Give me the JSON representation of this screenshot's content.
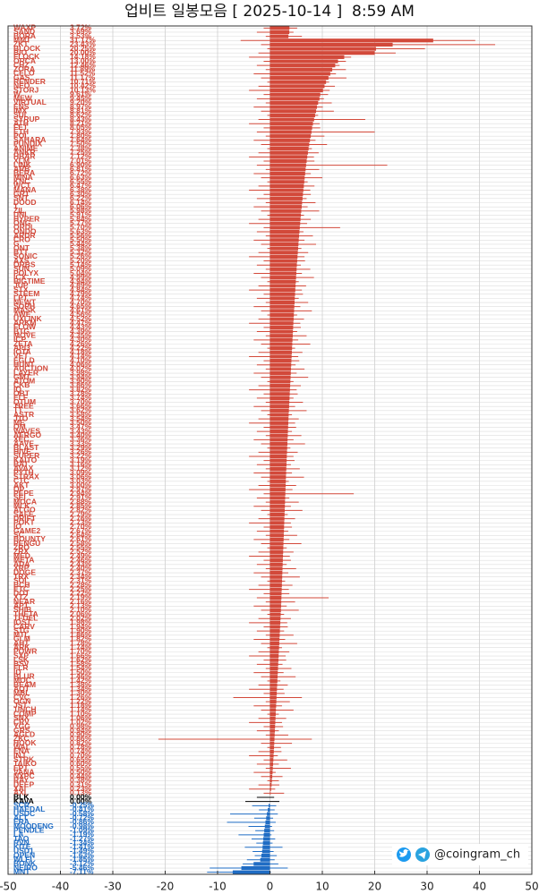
{
  "chart_data": {
    "type": "range-bar",
    "title": "업비트 일봉모음 [ 2025-10-14 ]  8:59 AM",
    "watermark": "@coingram_ch",
    "categories": [
      "WAXP",
      "SAND",
      "BORA",
      "MMT",
      "ZKT",
      "BLOCK",
      "BIO",
      "FLOCK",
      "ORCA",
      "CHZ",
      "ZORA",
      "CELO",
      "GAS",
      "RENDER",
      "NEO",
      "STORJ",
      "W",
      "MEW",
      "VIRTUAL",
      "ENS",
      "IMX",
      "SUI",
      "SYRUP",
      "ATH",
      "FET",
      "ETH",
      "POL",
      "SAHARA",
      "PUNDIX",
      "ANIME",
      "ANKR",
      "HBAR",
      "XLM",
      "LINK",
      "ARB",
      "BERA",
      "MINA",
      "KNC",
      "WCT",
      "MANA",
      "GRT",
      "SNT",
      "DOOD",
      "T",
      "ZIL",
      "UNI",
      "HYPER",
      "ONG",
      "ORDI",
      "ONDO",
      "ARDR",
      "CRO",
      "G",
      "ONT",
      "BTT",
      "SONIC",
      "AXS",
      "ORBS",
      "SUN",
      "POLYX",
      "ICX",
      "BIGTIME",
      "JUP",
      "STX",
      "STEEM",
      "LPT",
      "NEWT",
      "SOPH",
      "MASK",
      "AWE",
      "UXLINK",
      "ARKM",
      "FLOW",
      "BTG",
      "MOVE",
      "ICP",
      "ZETA",
      "API3",
      "IOTA",
      "VET",
      "EGLD",
      "HUNT",
      "AUCTION",
      "LAYER",
      "GMT",
      "ATOM",
      "CKB",
      "IQ",
      "OBT",
      "ELF",
      "QTUM",
      "TREE",
      "TT",
      "ASTR",
      "JTO",
      "ME",
      "OM",
      "WAVES",
      "AERGO",
      "XEC",
      "AAVE",
      "BLAST",
      "HIVE",
      "SUPER",
      "KAITO",
      "BAT",
      "AVAX",
      "PYTH",
      "STRAX",
      "CTC",
      "AKT",
      "OP",
      "PEPE",
      "SEI",
      "MOCA",
      "MLK",
      "ALGO",
      "SAFE",
      "DRIFT",
      "POKT",
      "IO",
      "GAME2",
      "SC",
      "BOUNTY",
      "PENGU",
      "ZRO",
      "ZRX",
      "MED",
      "META",
      "ADA",
      "XRP",
      "DOGE",
      "TRX",
      "SOL",
      "BCH",
      "ETC",
      "DOT",
      "XTZ",
      "NEAR",
      "APT",
      "SHIB",
      "THETA",
      "TFUEL",
      "IOST",
      "CARV",
      "STG",
      "MTL",
      "GLM",
      "AHT",
      "ARK",
      "POWR",
      "SXP",
      "LSK",
      "BSV",
      "FLR",
      "ID",
      "BLUR",
      "MOC",
      "BEAM",
      "AQT",
      "MBL",
      "CVC",
      "OGN",
      "JST",
      "1INCH",
      "COMP",
      "SNX",
      "CRV",
      "YGG",
      "GRS",
      "AGLD",
      "ZKC",
      "HOOK",
      "WAL",
      "ENA",
      "INJ",
      "STRK",
      "TAIKO",
      "EPT",
      "VANA",
      "NXPC",
      "RAY",
      "DEEP",
      "XAI",
      "AXL",
      "BLK",
      "KAVA",
      "SCR",
      "HAEDAL",
      "USDC",
      "ALT",
      "ERA",
      "MOODENG",
      "PENDLE",
      "LA",
      "TAO",
      "RVN",
      "KITE",
      "USD1",
      "OPEN",
      "WLFI",
      "BONK",
      "NEIRO",
      "MNT"
    ],
    "values": [
      3.72,
      3.69,
      3.53,
      31.17,
      23.43,
      20.25,
      20,
      14.18,
      13,
      12.46,
      11.89,
      11.52,
      11.17,
      10.71,
      10.42,
      10.13,
      9.61,
      9.45,
      9.2,
      8.97,
      8.81,
      8.62,
      8.43,
      8.21,
      8.05,
      7.93,
      7.8,
      7.64,
      7.5,
      7.38,
      7.25,
      7.12,
      7.01,
      6.9,
      6.81,
      6.72,
      6.63,
      6.55,
      6.47,
      6.38,
      6.3,
      6.22,
      6.14,
      6.06,
      5.98,
      5.91,
      5.84,
      5.77,
      5.7,
      5.63,
      5.56,
      5.5,
      5.44,
      5.38,
      5.32,
      5.26,
      5.2,
      5.14,
      5.09,
      5.04,
      4.99,
      4.94,
      4.89,
      4.84,
      4.79,
      4.74,
      4.7,
      4.65,
      4.61,
      4.56,
      4.52,
      4.47,
      4.43,
      4.39,
      4.35,
      4.3,
      4.26,
      4.22,
      4.18,
      4.14,
      4.1,
      4.06,
      4.02,
      3.98,
      3.94,
      3.9,
      3.86,
      3.82,
      3.78,
      3.74,
      3.7,
      3.66,
      3.62,
      3.58,
      3.54,
      3.5,
      3.47,
      3.43,
      3.4,
      3.36,
      3.33,
      3.29,
      3.26,
      3.22,
      3.19,
      3.16,
      3.12,
      3.09,
      3.06,
      3.03,
      3,
      2.97,
      2.94,
      2.91,
      2.88,
      2.85,
      2.82,
      2.79,
      2.76,
      2.73,
      2.7,
      2.67,
      2.64,
      2.61,
      2.58,
      2.55,
      2.52,
      2.49,
      2.46,
      2.43,
      2.4,
      2.37,
      2.34,
      2.31,
      2.28,
      2.25,
      2.22,
      2.19,
      2.16,
      2.13,
      2.1,
      2.06,
      2.02,
      1.98,
      1.94,
      1.9,
      1.86,
      1.82,
      1.78,
      1.74,
      1.7,
      1.66,
      1.62,
      1.58,
      1.54,
      1.5,
      1.46,
      1.42,
      1.38,
      1.34,
      1.3,
      1.26,
      1.22,
      1.18,
      1.14,
      1.1,
      1.06,
      1.02,
      0.98,
      0.94,
      0.9,
      0.86,
      0.82,
      0.78,
      0.74,
      0.7,
      0.65,
      0.6,
      0.55,
      0.5,
      0.44,
      0.38,
      0.31,
      0.23,
      0.13,
      0,
      0,
      -0.25,
      -0.41,
      -0.58,
      -0.72,
      -0.86,
      -0.98,
      -1.09,
      -1.19,
      -1.27,
      -1.34,
      -1.41,
      -1.49,
      -1.63,
      -1.85,
      -3.12,
      -5.46,
      -7.11
    ],
    "value_labels": [
      "3.72%",
      "3.69%",
      "3.53%",
      "31.17%",
      "23.43%",
      "20.25%",
      "20.00%",
      "14.18%",
      "13.00%",
      "12.46%",
      "11.89%",
      "11.52%",
      "11.17%",
      "10.71%",
      "10.42%",
      "10.13%",
      "9.61%",
      "9.45%",
      "9.20%",
      "8.97%",
      "8.81%",
      "8.62%",
      "8.43%",
      "8.21%",
      "8.05%",
      "7.93%",
      "7.80%",
      "7.64%",
      "7.50%",
      "7.38%",
      "7.25%",
      "7.12%",
      "7.01%",
      "6.90%",
      "6.81%",
      "6.72%",
      "6.63%",
      "6.55%",
      "6.47%",
      "6.38%",
      "6.30%",
      "6.22%",
      "6.14%",
      "6.06%",
      "5.98%",
      "5.91%",
      "5.84%",
      "5.77%",
      "5.70%",
      "5.63%",
      "5.56%",
      "5.50%",
      "5.44%",
      "5.38%",
      "5.32%",
      "5.26%",
      "5.20%",
      "5.14%",
      "5.09%",
      "5.04%",
      "4.99%",
      "4.94%",
      "4.89%",
      "4.84%",
      "4.79%",
      "4.74%",
      "4.70%",
      "4.65%",
      "4.61%",
      "4.56%",
      "4.52%",
      "4.47%",
      "4.43%",
      "4.39%",
      "4.35%",
      "4.30%",
      "4.26%",
      "4.22%",
      "4.18%",
      "4.14%",
      "4.10%",
      "4.06%",
      "4.02%",
      "3.98%",
      "3.94%",
      "3.90%",
      "3.86%",
      "3.82%",
      "3.78%",
      "3.74%",
      "3.70%",
      "3.66%",
      "3.62%",
      "3.58%",
      "3.54%",
      "3.50%",
      "3.47%",
      "3.43%",
      "3.40%",
      "3.36%",
      "3.33%",
      "3.29%",
      "3.26%",
      "3.22%",
      "3.19%",
      "3.16%",
      "3.12%",
      "3.09%",
      "3.06%",
      "3.03%",
      "3.00%",
      "2.97%",
      "2.94%",
      "2.91%",
      "2.88%",
      "2.85%",
      "2.82%",
      "2.79%",
      "2.76%",
      "2.73%",
      "2.70%",
      "2.67%",
      "2.64%",
      "2.61%",
      "2.58%",
      "2.55%",
      "2.52%",
      "2.49%",
      "2.46%",
      "2.43%",
      "2.40%",
      "2.37%",
      "2.34%",
      "2.31%",
      "2.28%",
      "2.25%",
      "2.22%",
      "2.19%",
      "2.16%",
      "2.13%",
      "2.10%",
      "2.06%",
      "2.02%",
      "1.98%",
      "1.94%",
      "1.90%",
      "1.86%",
      "1.82%",
      "1.78%",
      "1.74%",
      "1.70%",
      "1.66%",
      "1.62%",
      "1.58%",
      "1.54%",
      "1.50%",
      "1.46%",
      "1.42%",
      "1.38%",
      "1.34%",
      "1.30%",
      "1.26%",
      "1.22%",
      "1.18%",
      "1.14%",
      "1.10%",
      "1.06%",
      "1.02%",
      "0.98%",
      "0.94%",
      "0.90%",
      "0.86%",
      "0.82%",
      "0.78%",
      "0.74%",
      "0.70%",
      "0.65%",
      "0.60%",
      "0.55%",
      "0.50%",
      "0.44%",
      "0.38%",
      "0.31%",
      "0.23%",
      "0.13%",
      "0.00%",
      "0.00%",
      "-0.25%",
      "-0.41%",
      "-0.58%",
      "-0.72%",
      "-0.86%",
      "-0.98%",
      "-1.09%",
      "-1.19%",
      "-1.27%",
      "-1.34%",
      "-1.41%",
      "-1.49%",
      "-1.63%",
      "-1.85%",
      "-3.12%",
      "-5.46%",
      "-7.11%"
    ],
    "low": [
      -1.2,
      -2.5,
      -0.8,
      -5.6,
      -1.7,
      -0.5,
      -2.2,
      -4.0,
      -1.2,
      -2.5,
      -0.8,
      -3.1,
      -1.7,
      -0.5,
      -2.2,
      -4.0,
      -1.2,
      -2.5,
      -0.8,
      -3.1,
      -1.7,
      -0.5,
      -2.2,
      -4.0,
      -1.2,
      -2.5,
      -0.8,
      -3.1,
      -1.7,
      -0.5,
      -2.2,
      -4.0,
      -1.2,
      -2.5,
      -0.8,
      -3.1,
      -1.7,
      -0.5,
      -2.2,
      -4.0,
      -1.2,
      -2.5,
      -0.8,
      -3.1,
      -1.7,
      -0.5,
      -2.2,
      -4.0,
      -1.2,
      -2.5,
      -0.8,
      -3.1,
      -1.7,
      -0.5,
      -2.2,
      -4.0,
      -1.2,
      -2.5,
      -0.8,
      -3.1,
      -1.7,
      -0.5,
      -2.2,
      -4.0,
      -1.2,
      -2.5,
      -0.8,
      -3.1,
      -1.7,
      -0.5,
      -2.2,
      -4.0,
      -1.2,
      -2.5,
      -0.8,
      -3.1,
      -1.7,
      -0.5,
      -2.2,
      -4.0,
      -1.2,
      -2.5,
      -0.8,
      -3.1,
      -1.7,
      -0.5,
      -2.2,
      -4.0,
      -1.2,
      -2.5,
      -0.8,
      -3.1,
      -1.7,
      -0.5,
      -2.2,
      -4.0,
      -1.2,
      -2.5,
      -0.8,
      -3.1,
      -1.7,
      -0.5,
      -2.2,
      -4.0,
      -1.2,
      -2.5,
      -0.8,
      -3.1,
      -1.7,
      -0.5,
      -2.2,
      -4.0,
      -1.2,
      -2.5,
      -0.8,
      -3.1,
      -1.7,
      -0.5,
      -2.2,
      -4.0,
      -1.2,
      -2.5,
      -0.8,
      -3.1,
      -1.7,
      -0.5,
      -2.2,
      -4.0,
      -1.2,
      -2.5,
      -0.8,
      -3.1,
      -1.7,
      -0.5,
      -2.2,
      -4.0,
      -1.2,
      -2.5,
      -0.8,
      -3.1,
      -1.7,
      -0.5,
      -2.2,
      -4.0,
      -1.2,
      -2.5,
      -0.8,
      -3.1,
      -1.7,
      -0.5,
      -2.2,
      -4.0,
      -1.2,
      -2.5,
      -0.8,
      -3.1,
      -1.7,
      -0.5,
      -2.2,
      -4.0,
      -1.2,
      -7.0,
      -0.8,
      -3.1,
      -1.7,
      -0.5,
      -2.2,
      -4.0,
      -1.2,
      -2.5,
      -0.8,
      -21.3,
      -1.7,
      -0.5,
      -2.2,
      -4.0,
      -1.2,
      -2.5,
      -0.8,
      -3.1,
      -1.7,
      -0.5,
      -2.2,
      -4.0,
      -1.2,
      -2.5,
      -4.7,
      -3.4,
      -2.1,
      -7.6,
      -3.0,
      -8.2,
      -4.1,
      -2.8,
      -6.0,
      -3.5,
      -2.6,
      -4.8,
      -3.3,
      -2.9,
      -4.4,
      -5.2,
      -11.5,
      -12.0
    ],
    "high": [
      5.2,
      4.5,
      6.1,
      39.2,
      43.0,
      29.6,
      24.0,
      15.5,
      14.5,
      13.3,
      14.5,
      12.6,
      14.6,
      11.3,
      12.4,
      11.4,
      11.1,
      10.3,
      11.8,
      10.1,
      12.2,
      9.2,
      18.2,
      9.5,
      9.6,
      20.0,
      10.4,
      8.7,
      10.9,
      8.0,
      9.3,
      8.4,
      8.5,
      22.4,
      9.4,
      7.8,
      10.0,
      7.2,
      8.5,
      7.7,
      7.8,
      7.0,
      8.7,
      7.2,
      9.4,
      6.5,
      7.8,
      7.1,
      13.4,
      6.4,
      8.2,
      6.6,
      8.8,
      6.0,
      7.3,
      6.6,
      6.7,
      5.9,
      7.7,
      6.1,
      8.4,
      5.5,
      6.9,
      6.1,
      6.3,
      5.5,
      7.3,
      5.8,
      8.0,
      5.2,
      6.5,
      5.8,
      5.9,
      5.2,
      7.0,
      5.4,
      7.7,
      4.8,
      6.2,
      5.4,
      5.6,
      4.9,
      6.6,
      5.1,
      7.3,
      4.5,
      5.9,
      5.1,
      5.3,
      4.5,
      6.3,
      4.8,
      7.0,
      4.2,
      5.5,
      4.8,
      5.0,
      4.2,
      6.0,
      4.5,
      6.7,
      3.9,
      5.3,
      4.5,
      4.7,
      4.0,
      5.7,
      4.2,
      6.5,
      3.6,
      5.0,
      4.3,
      16.0,
      3.7,
      5.5,
      4.0,
      6.2,
      3.4,
      4.8,
      4.0,
      4.2,
      3.5,
      5.2,
      3.7,
      6.0,
      3.2,
      4.5,
      3.8,
      4.0,
      3.2,
      5.0,
      3.5,
      5.7,
      2.9,
      4.3,
      3.6,
      3.7,
      11.2,
      4.8,
      3.2,
      5.5,
      2.7,
      4.0,
      3.3,
      3.4,
      2.7,
      4.5,
      2.9,
      5.2,
      2.3,
      3.7,
      3.0,
      3.1,
      2.4,
      4.1,
      2.6,
      4.9,
      2.0,
      3.4,
      2.6,
      2.8,
      6.1,
      3.8,
      2.3,
      4.5,
      1.7,
      3.1,
      2.3,
      2.5,
      1.7,
      3.5,
      8.0,
      4.2,
      2.1,
      2.2,
      1.5,
      3.3,
      1.7,
      4.0,
      1.1,
      2.4,
      1.7,
      1.8,
      1.0,
      2.7,
      0.8,
      1.8,
      1.2,
      0.9,
      1.5,
      0.6,
      1.1,
      0.4,
      0.8,
      0.3,
      1.0,
      0.5,
      2.4,
      0.7,
      1.3,
      0.9,
      1.6,
      3.4,
      0.2
    ],
    "colors": {
      "up": "#d2493a",
      "flat": "#000000",
      "down": "#1f6cc4"
    },
    "xlim": [
      -50,
      50
    ],
    "xticks": [
      -50,
      -40,
      -30,
      -20,
      -10,
      0,
      10,
      20,
      30,
      40,
      50
    ],
    "grid": true
  }
}
